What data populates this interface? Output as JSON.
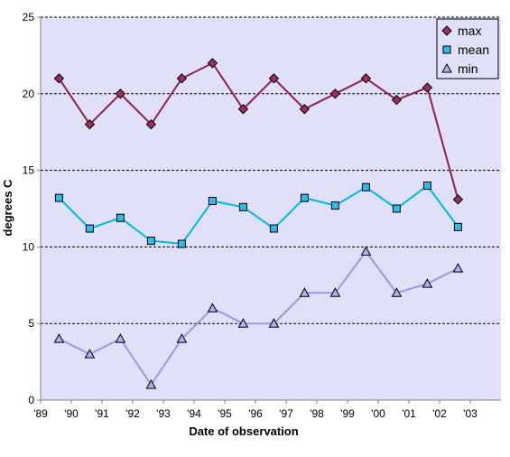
{
  "chart_data": {
    "type": "line",
    "title": "",
    "xlabel": "Date of observation",
    "ylabel": "degrees C",
    "ylim": [
      0,
      25
    ],
    "yticks": [
      0,
      5,
      10,
      15,
      20,
      25
    ],
    "xticks": [
      "'89",
      "'90",
      "'91",
      "'92",
      "'93",
      "'94",
      "'95",
      "'96",
      "'97",
      "'98",
      "'99",
      "'00",
      "'01",
      "'02",
      "'03"
    ],
    "grid": "horizontal-dashed",
    "legend": "top-right",
    "colors": {
      "plot_background": "#e0e0f8",
      "max": "#8b2252",
      "max_marker": "#9b3060",
      "mean": "#00b8e0",
      "mean_marker": "#33b8e8",
      "min": "#9a9ae0",
      "min_marker": "#b0b0ee"
    },
    "x": [
      1989.6,
      1990.6,
      1991.6,
      1992.6,
      1993.6,
      1994.6,
      1995.6,
      1996.6,
      1997.6,
      1998.6,
      1999.6,
      2000.6,
      2001.6,
      2002.6
    ],
    "series": [
      {
        "name": "max",
        "marker": "diamond",
        "values": [
          21,
          18,
          20,
          18,
          21,
          22,
          19,
          21,
          19,
          20,
          21,
          19.6,
          20.4,
          13.1
        ]
      },
      {
        "name": "mean",
        "marker": "square",
        "values": [
          13.2,
          11.2,
          11.9,
          10.4,
          10.2,
          13,
          12.6,
          11.2,
          13.2,
          12.7,
          13.9,
          12.5,
          14,
          11.3
        ]
      },
      {
        "name": "min",
        "marker": "triangle",
        "values": [
          4,
          3,
          4,
          1,
          4,
          6,
          5,
          5,
          7,
          7,
          9.7,
          7,
          7.6,
          8.6
        ]
      }
    ]
  }
}
